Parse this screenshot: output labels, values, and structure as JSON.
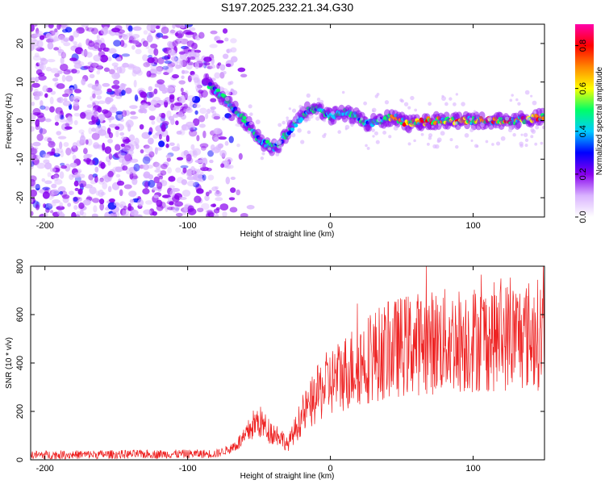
{
  "title": "S197.2025.232.21.34.G30",
  "colors": {
    "snr_line": "#ee2222",
    "colormap": [
      "#ffffff",
      "#d9b3ff",
      "#8800ee",
      "#0000ff",
      "#00ccff",
      "#00ff66",
      "#ffff00",
      "#ff8800",
      "#ff0000",
      "#ff00aa"
    ]
  },
  "chart_data": [
    {
      "type": "heatmap",
      "name": "spectrogram",
      "xlabel": "Height of straight line (km)",
      "ylabel": "Frequency (Hz)",
      "xlim": [
        -210,
        150
      ],
      "ylim": [
        -25,
        25
      ],
      "xticks": [
        -200,
        -100,
        0,
        100
      ],
      "yticks": [
        -20,
        -10,
        0,
        10,
        20
      ],
      "colorbar": {
        "label": "Normalized spectral amplitude",
        "range": [
          0.0,
          0.9
        ],
        "ticks": [
          0.0,
          0.2,
          0.4,
          0.6,
          0.8
        ]
      },
      "ridge": {
        "x": [
          -85,
          -75,
          -65,
          -55,
          -50,
          -45,
          -40,
          -35,
          -30,
          -25,
          -20,
          -15,
          -10,
          -5,
          0,
          10,
          20,
          25,
          35,
          45,
          55,
          70,
          90,
          110,
          130,
          150
        ],
        "y": [
          9,
          6,
          2,
          -2,
          -5,
          -6,
          -7,
          -6,
          -3,
          -1,
          1,
          3,
          3,
          2,
          1,
          2,
          1,
          -1,
          0,
          1,
          -1,
          0,
          0,
          0,
          0,
          1
        ]
      },
      "noise_region": {
        "x_from": -210,
        "x_to": -75
      }
    },
    {
      "type": "line",
      "name": "snr",
      "xlabel": "Height of straight line (km)",
      "ylabel": "SNR (10 * v/v)",
      "xlim": [
        -210,
        150
      ],
      "ylim": [
        0,
        800
      ],
      "xticks": [
        -200,
        -100,
        0,
        100
      ],
      "yticks": [
        0,
        200,
        400,
        600,
        800
      ],
      "trend": {
        "x": [
          -210,
          -80,
          -70,
          -60,
          -55,
          -50,
          -45,
          -40,
          -35,
          -30,
          -25,
          -20,
          -15,
          -10,
          -5,
          0,
          10,
          20,
          30,
          40,
          50,
          60,
          80,
          100,
          120,
          150
        ],
        "y": [
          20,
          25,
          45,
          90,
          140,
          160,
          130,
          110,
          100,
          60,
          120,
          180,
          220,
          260,
          300,
          320,
          360,
          400,
          430,
          450,
          470,
          480,
          490,
          500,
          510,
          520
        ]
      }
    }
  ]
}
